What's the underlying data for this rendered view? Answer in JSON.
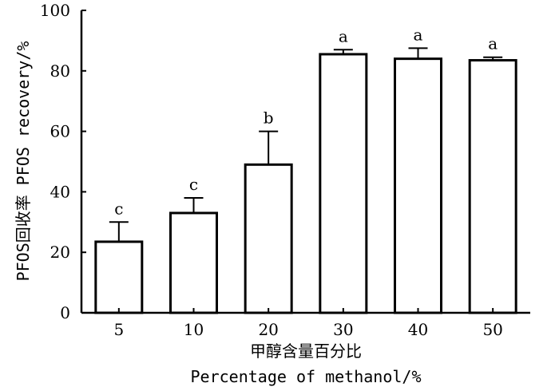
{
  "chart_data": {
    "type": "bar",
    "categories": [
      "5",
      "10",
      "20",
      "30",
      "40",
      "50"
    ],
    "values": [
      23.5,
      33,
      49,
      85.5,
      84,
      83.5
    ],
    "error_bars": [
      6.5,
      5,
      11,
      1.5,
      3.5,
      1
    ],
    "significance": [
      "c",
      "c",
      "b",
      "a",
      "a",
      "a"
    ],
    "xlabel_cn": "甲醇含量百分比",
    "xlabel": "Percentage of methanol/%",
    "ylabel": "PFOS回收率 PFOS recovery/%",
    "ylim": [
      0,
      100
    ],
    "yticks": [
      "0",
      "20",
      "40",
      "60",
      "80",
      "100"
    ],
    "grid": false
  }
}
